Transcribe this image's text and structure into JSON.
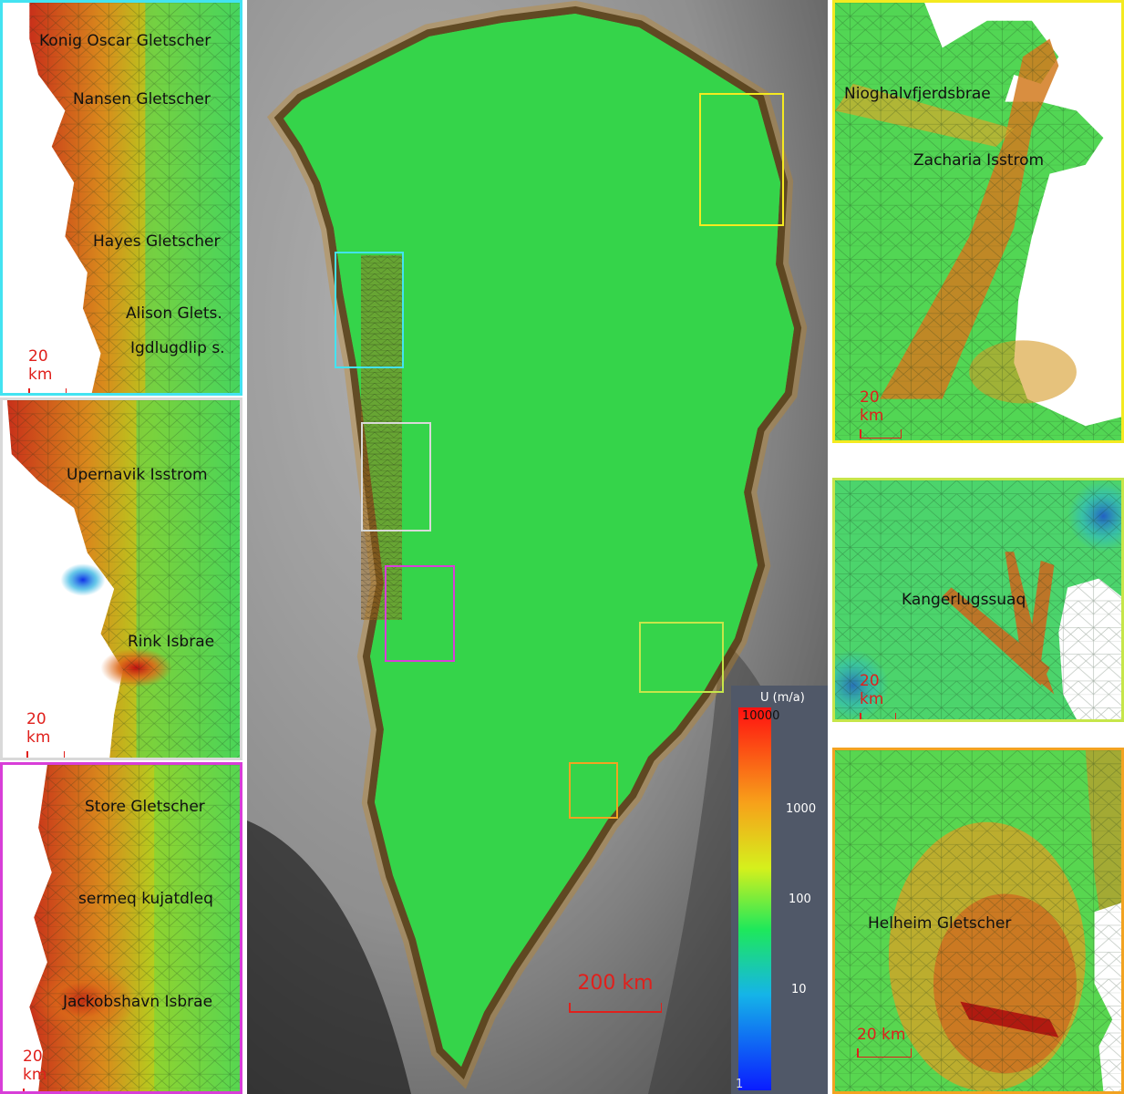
{
  "colors": {
    "cyan": "#43e3f1",
    "yellow": "#f4ea20",
    "white": "#d9d9d9",
    "magenta": "#d83ed8",
    "lime": "#c6e64a",
    "orange": "#f2a321",
    "scale_red": "#e0201c"
  },
  "panels": {
    "p1": {
      "labels": [
        "Konig Oscar Gletscher",
        "Nansen Gletscher",
        "Hayes Gletscher",
        "Alison Glets.",
        "Igdlugdlip s."
      ],
      "scale": "20 km"
    },
    "p2": {
      "labels": [
        "Upernavik Isstrom",
        "Rink Isbrae"
      ],
      "scale": "20 km"
    },
    "p3": {
      "labels": [
        "Store Gletscher",
        "sermeq kujatdleq",
        "Jackobshavn Isbrae"
      ],
      "scale": "20 km"
    },
    "p4": {
      "labels": [
        "Nioghalvfjerdsbrae",
        "Zacharia Isstrom"
      ],
      "scale": "20 km"
    },
    "p5": {
      "labels": [
        "Kangerlugssuaq"
      ],
      "scale": "20 km"
    },
    "p6": {
      "labels": [
        "Helheim Gletscher"
      ],
      "scale": "20 km"
    }
  },
  "main_map": {
    "scale": "200 km"
  },
  "colorbar": {
    "title": "U (m/a)",
    "ticks": [
      "10000",
      "1000",
      "100",
      "10",
      "1"
    ]
  }
}
